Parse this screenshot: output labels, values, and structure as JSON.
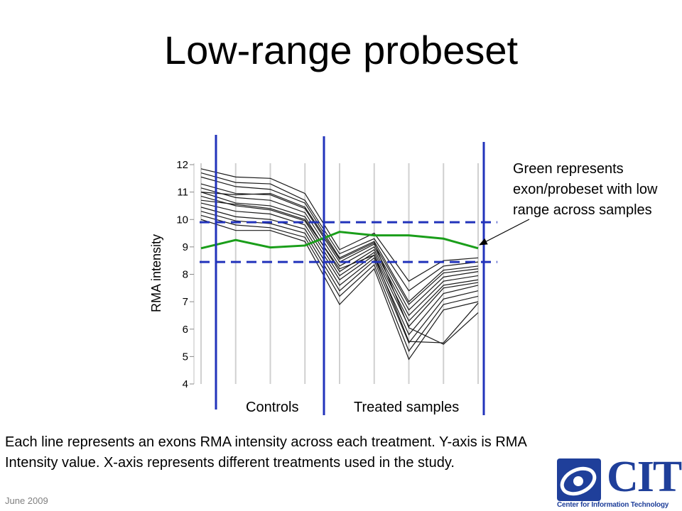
{
  "slide": {
    "title": "Low-range probeset",
    "footer_date": "June 2009",
    "caption_line1": "Each line represents an exons RMA intensity across each treatment.  Y-axis is RMA",
    "caption_line2": "Intensity value.  X-axis represents different treatments used in the study.",
    "annotation_line1": "Green represents",
    "annotation_line2": "exon/probeset with low",
    "annotation_line3": "range across samples",
    "logo": {
      "text": "CIT",
      "subtitle": "Center for Information Technology",
      "color": "#1f3f9a"
    }
  },
  "chart_data": {
    "type": "line",
    "ylabel": "RMA intensity",
    "xlabel": "",
    "ylim": [
      4,
      12
    ],
    "yticks": [
      4,
      5,
      6,
      7,
      8,
      9,
      10,
      11,
      12
    ],
    "x": [
      1,
      2,
      3,
      4,
      5,
      6,
      7,
      8,
      9
    ],
    "grid": "vertical",
    "group_labels": [
      "Controls",
      "Treated samples"
    ],
    "colors": {
      "highlight": "#1a9e1a",
      "other": "#1a1a1a",
      "divider": "#2233bb"
    },
    "range_band": [
      8.45,
      9.9
    ],
    "highlight_series": {
      "name": "",
      "values": [
        8.95,
        9.25,
        8.98,
        9.05,
        9.55,
        9.42,
        9.42,
        9.3,
        8.95
      ]
    },
    "series": [
      {
        "values": [
          11.85,
          11.55,
          11.5,
          10.95,
          8.9,
          9.5,
          7.75,
          8.5,
          8.6
        ]
      },
      {
        "values": [
          11.7,
          11.35,
          11.3,
          10.7,
          8.75,
          9.3,
          7.4,
          8.3,
          8.45
        ]
      },
      {
        "values": [
          11.55,
          11.2,
          11.1,
          10.6,
          8.6,
          9.2,
          7.0,
          8.15,
          8.3
        ]
      },
      {
        "values": [
          11.3,
          10.95,
          10.9,
          10.4,
          8.45,
          9.1,
          6.9,
          8.05,
          8.2
        ]
      },
      {
        "values": [
          11.15,
          10.8,
          10.7,
          10.25,
          8.3,
          9.0,
          6.7,
          7.9,
          8.1
        ]
      },
      {
        "values": [
          11.0,
          10.6,
          10.5,
          10.1,
          8.1,
          8.9,
          6.5,
          7.75,
          7.95
        ]
      },
      {
        "values": [
          10.85,
          10.5,
          10.35,
          9.95,
          7.95,
          8.8,
          6.3,
          7.6,
          7.8
        ]
      },
      {
        "values": [
          10.6,
          10.3,
          10.2,
          9.8,
          7.8,
          8.7,
          6.1,
          7.5,
          7.7
        ]
      },
      {
        "values": [
          10.45,
          10.1,
          10.0,
          9.65,
          7.6,
          8.6,
          5.8,
          7.3,
          7.6
        ]
      },
      {
        "values": [
          10.3,
          9.95,
          9.85,
          9.5,
          7.4,
          8.5,
          5.5,
          7.1,
          7.4
        ]
      },
      {
        "values": [
          10.15,
          9.8,
          9.7,
          9.35,
          7.2,
          8.35,
          5.2,
          6.9,
          7.2
        ]
      },
      {
        "values": [
          10.0,
          9.6,
          9.6,
          9.2,
          6.9,
          8.2,
          4.9,
          6.7,
          7.0
        ]
      },
      {
        "values": [
          11.0,
          10.9,
          10.95,
          10.45,
          8.55,
          9.15,
          6.05,
          5.45,
          6.6
        ]
      },
      {
        "values": [
          10.7,
          10.55,
          10.4,
          10.0,
          8.2,
          8.7,
          5.55,
          5.5,
          6.95
        ]
      }
    ]
  }
}
